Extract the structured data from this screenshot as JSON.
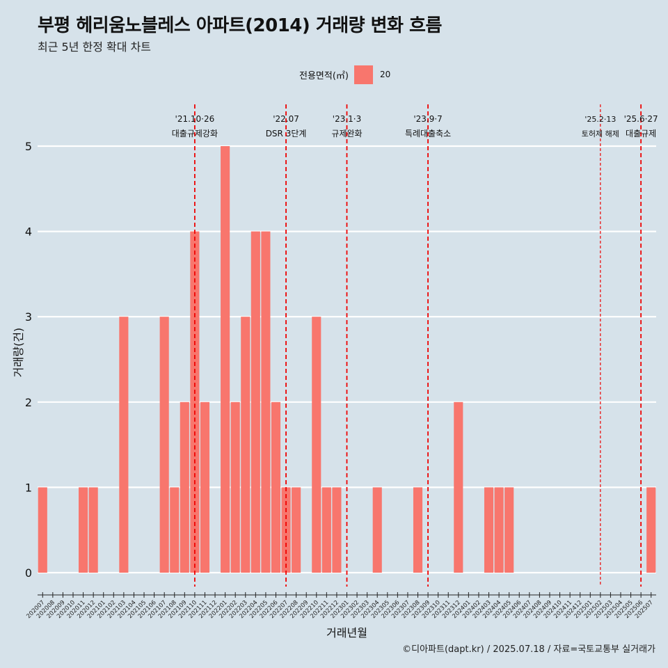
{
  "header": {
    "title": "부평 헤리움노블레스 아파트(2014) 거래량 변화 흐름",
    "subtitle": "최근 5년 한정 확대 차트"
  },
  "legend": {
    "title": "전용면적(㎡)",
    "entry": "20",
    "color": "#f8766d"
  },
  "caption": "©디아파트(dapt.kr) / 2025.07.18 / 자료=국토교통부 실거래가",
  "colors": {
    "background": "#d6e2ea",
    "bar": "#f8766d",
    "grid": "#ffffff",
    "event_line": "#ee0000"
  },
  "chart_data": {
    "type": "bar",
    "xlabel": "거래년월",
    "ylabel": "거래량(건)",
    "ylim": [
      0,
      5
    ],
    "yticks": [
      0,
      1,
      2,
      3,
      4,
      5
    ],
    "grid": true,
    "legend_position": "top",
    "categories": [
      "202007",
      "202008",
      "202009",
      "202010",
      "202011",
      "202012",
      "202101",
      "202102",
      "202103",
      "202104",
      "202105",
      "202106",
      "202107",
      "202108",
      "202109",
      "202110",
      "202111",
      "202112",
      "202201",
      "202202",
      "202203",
      "202204",
      "202205",
      "202206",
      "202207",
      "202208",
      "202209",
      "202210",
      "202211",
      "202212",
      "202301",
      "202302",
      "202303",
      "202304",
      "202305",
      "202306",
      "202307",
      "202308",
      "202309",
      "202310",
      "202311",
      "202312",
      "202401",
      "202402",
      "202403",
      "202404",
      "202405",
      "202406",
      "202407",
      "202408",
      "202409",
      "202410",
      "202411",
      "202412",
      "202501",
      "202502",
      "202503",
      "202504",
      "202505",
      "202506",
      "202507"
    ],
    "series": [
      {
        "name": "20",
        "values": [
          1,
          0,
          0,
          0,
          1,
          1,
          0,
          0,
          3,
          0,
          0,
          0,
          3,
          1,
          2,
          4,
          2,
          0,
          5,
          2,
          3,
          4,
          4,
          2,
          1,
          1,
          0,
          3,
          1,
          1,
          0,
          0,
          0,
          1,
          0,
          0,
          0,
          1,
          0,
          0,
          0,
          2,
          0,
          0,
          1,
          1,
          1,
          0,
          0,
          0,
          0,
          0,
          0,
          0,
          0,
          0,
          0,
          0,
          0,
          0,
          1
        ]
      }
    ],
    "events": [
      {
        "date": "'21.10·26",
        "label": "대출규제강화",
        "pos": 15.5,
        "style": "major"
      },
      {
        "date": "'22.07",
        "label": "DSR 3단계",
        "pos": 24.5,
        "style": "major"
      },
      {
        "date": "'23.1·3",
        "label": "규제완화",
        "pos": 30.5,
        "style": "major"
      },
      {
        "date": "'23.9·7",
        "label": "특례대출축소",
        "pos": 38.5,
        "style": "major"
      },
      {
        "date": "'25.2·13",
        "label": "토허제 해제",
        "pos": 55.5,
        "style": "minor"
      },
      {
        "date": "'25.6·27",
        "label": "대출규제",
        "pos": 59.5,
        "style": "major"
      }
    ]
  }
}
